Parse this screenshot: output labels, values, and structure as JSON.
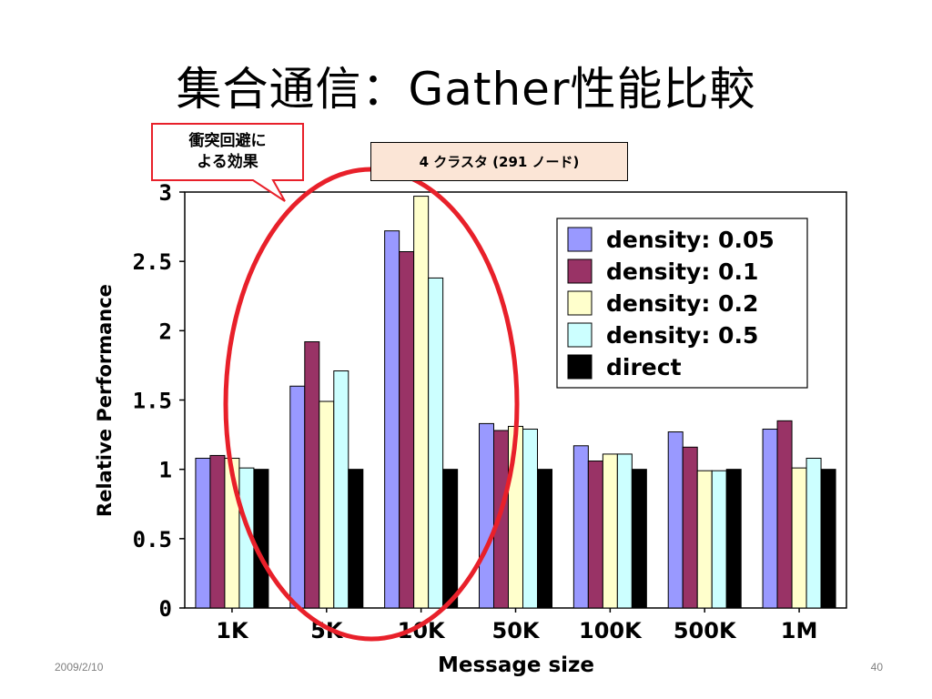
{
  "slide": {
    "title": "集合通信：Gather性能比較",
    "cluster_label": "4 クラスタ (291 ノード)",
    "callout": {
      "line1": "衝突回避に",
      "line2": "よる効果"
    },
    "footer_date": "2009/2/10",
    "footer_page": "40"
  },
  "colors": {
    "callout_border": "#e8202a",
    "ellipse": "#e8202a",
    "cluster_label_bg": "#fbe5d6"
  },
  "chart_data": {
    "type": "bar",
    "title": "",
    "xlabel": "Message size",
    "ylabel": "Relative Performance",
    "ylim": [
      0,
      3
    ],
    "yticks": [
      "0",
      "0.5",
      "1",
      "1.5",
      "2",
      "2.5",
      "3"
    ],
    "categories": [
      "1K",
      "5K",
      "10K",
      "50K",
      "100K",
      "500K",
      "1M"
    ],
    "legend_position": "top-right",
    "grid": false,
    "series": [
      {
        "name": "density: 0.05",
        "color": "#9999ff",
        "values": [
          1.08,
          1.6,
          2.72,
          1.33,
          1.17,
          1.27,
          1.29
        ]
      },
      {
        "name": "density: 0.1",
        "color": "#993366",
        "values": [
          1.1,
          1.92,
          2.57,
          1.28,
          1.06,
          1.16,
          1.35
        ]
      },
      {
        "name": "density: 0.2",
        "color": "#ffffcc",
        "values": [
          1.08,
          1.49,
          2.97,
          1.31,
          1.11,
          0.99,
          1.01
        ]
      },
      {
        "name": "density: 0.5",
        "color": "#ccffff",
        "values": [
          1.01,
          1.71,
          2.38,
          1.29,
          1.11,
          0.99,
          1.08
        ]
      },
      {
        "name": "direct",
        "color": "#000000",
        "values": [
          1.0,
          1.0,
          1.0,
          1.0,
          1.0,
          1.0,
          1.0
        ]
      }
    ]
  }
}
